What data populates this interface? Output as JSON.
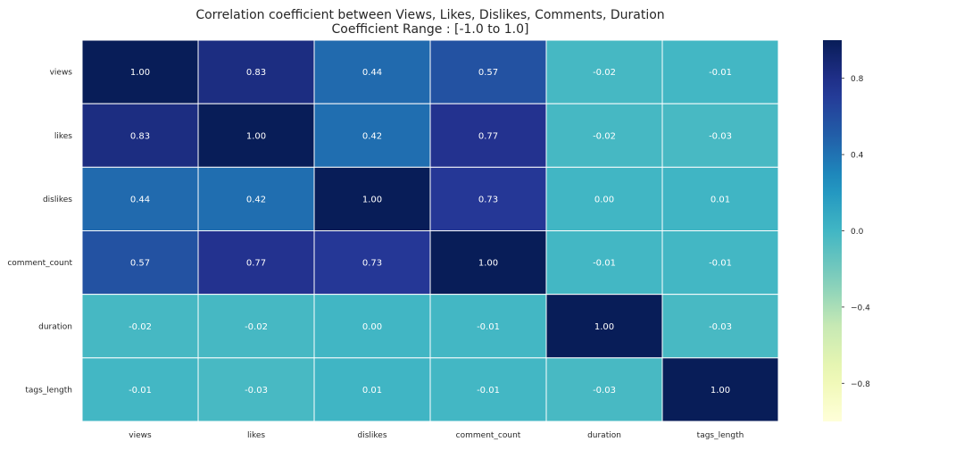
{
  "chart_data": {
    "type": "heatmap",
    "title": "Correlation coefficient between Views, Likes, Dislikes, Comments, Duration",
    "subtitle": "Coefficient Range : [-1.0 to 1.0]",
    "rows": [
      "views",
      "likes",
      "dislikes",
      "comment_count",
      "duration",
      "tags_length"
    ],
    "columns": [
      "views",
      "likes",
      "dislikes",
      "comment_count",
      "duration",
      "tags_length"
    ],
    "values": [
      [
        1.0,
        0.83,
        0.44,
        0.57,
        -0.02,
        -0.01
      ],
      [
        0.83,
        1.0,
        0.42,
        0.77,
        -0.02,
        -0.03
      ],
      [
        0.44,
        0.42,
        1.0,
        0.73,
        -0.0,
        0.01
      ],
      [
        0.57,
        0.77,
        0.73,
        1.0,
        -0.01,
        -0.01
      ],
      [
        -0.02,
        -0.02,
        -0.0,
        -0.01,
        1.0,
        -0.03
      ],
      [
        -0.01,
        -0.03,
        0.01,
        -0.01,
        -0.03,
        1.0
      ]
    ],
    "value_format": "2 decimals",
    "vmin": -1.0,
    "vmax": 1.0,
    "colormap": "YlGnBu",
    "colorbar_ticks": [
      0.8,
      0.4,
      0.0,
      -0.4,
      -0.8
    ],
    "colorbar_tick_labels": [
      "0.8",
      "0.4",
      "0.0",
      "−0.4",
      "−0.8"
    ],
    "grid_line_color": "#ffffff"
  }
}
